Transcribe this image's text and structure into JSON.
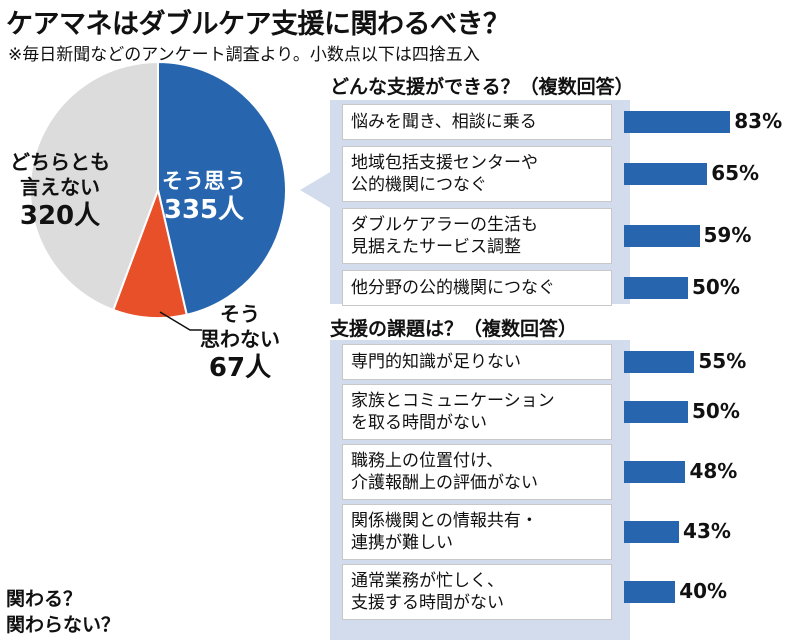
{
  "title": "ケアマネはダブルケア支援に関わるべき？",
  "subtitle": "※毎日新聞などのアンケート調査より。小数点以下は四捨五入",
  "colors": {
    "accent": "#2766ae",
    "pie_yes": "#2766ae",
    "pie_no": "#e8502a",
    "pie_neutral": "#dcdcdc",
    "panel": "#d3dcec"
  },
  "chart_data": [
    {
      "type": "pie",
      "slices": [
        {
          "label": "そう思う",
          "value": 335,
          "unit": "人"
        },
        {
          "label": "そう思わない",
          "value": 67,
          "unit": "人"
        },
        {
          "label": "どちらとも言えない",
          "value": 320,
          "unit": "人"
        }
      ]
    },
    {
      "type": "bar",
      "title": "どんな支援ができる？（複数回答）",
      "categories": [
        "悩みを聞き、相談に乗る",
        "地域包括支援センターや\n公的機関につなぐ",
        "ダブルケアラーの生活も\n見据えたサービス調整",
        "他分野の公的機関につなぐ"
      ],
      "values": [
        83,
        65,
        59,
        50
      ],
      "labels": [
        "83%",
        "65%",
        "59%",
        "50%"
      ]
    },
    {
      "type": "bar",
      "title": "支援の課題は？（複数回答）",
      "categories": [
        "専門的知識が足りない",
        "家族とコミュニケーション\nを取る時間がない",
        "職務上の位置付け、\n介護報酬上の評価がない",
        "関係機関との情報共有・\n連携が難しい",
        "通常業務が忙しく、\n支援する時間がない"
      ],
      "values": [
        55,
        50,
        48,
        43,
        40
      ],
      "labels": [
        "55%",
        "50%",
        "48%",
        "43%",
        "40%"
      ]
    }
  ],
  "pie_labels": {
    "yes_a": "そう思う",
    "yes_b": "335人",
    "neutral_a": "どちらとも",
    "neutral_b": "言えない",
    "neutral_c": "320人",
    "no_a": "そう",
    "no_b": "思わない",
    "no_c": "67人"
  },
  "thought_text": "関わる？\n 関わらない？"
}
